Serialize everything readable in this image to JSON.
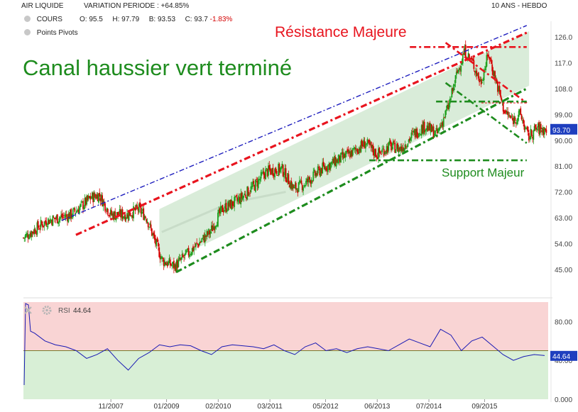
{
  "header": {
    "symbol": "AIR LIQUIDE",
    "variation_label": "VARIATION PERIODE :",
    "variation_value": "+64.85%",
    "period": "10 ANS - HEBDO",
    "series_label": "COURS",
    "open_label": "O:",
    "open_value": "95.5",
    "high_label": "H:",
    "high_value": "97.79",
    "low_label": "B:",
    "low_value": "93.53",
    "close_label": "C:",
    "close_value": "93.7",
    "change_value": "-1.83%",
    "pivots_label": "Points Pivots"
  },
  "annotations": {
    "main_title": "Canal haussier vert terminé",
    "resistance": "Résistance Majeure",
    "support": "Support Majeur"
  },
  "colors": {
    "up": "#1ea01e",
    "down": "#d40000",
    "channel_green": "#1e8c1e",
    "resistance_red": "#e8141e",
    "channel_blue": "#1e1ebe",
    "rsi_line": "#1a1ab4",
    "rsi_upper_bg": "#f9d4d4",
    "rsi_lower_bg": "#d8efd6",
    "price_badge": "#1f3fbf"
  },
  "chart_data": [
    {
      "type": "candlestick",
      "y_ticks": [
        "45.00",
        "54.00",
        "63.00",
        "72.00",
        "81.00",
        "90.00",
        "99.00",
        "108.0",
        "117.0",
        "126.0"
      ],
      "ylim": [
        40,
        129
      ],
      "x_ticks": [
        "11/2007",
        "01/2009",
        "02/2010",
        "03/2011",
        "05/2012",
        "06/2013",
        "07/2014",
        "09/2015"
      ],
      "last_price": "93.70",
      "resistance_level": 122.5,
      "support_level": 83,
      "trend_anchors": [
        {
          "date": "2006-01",
          "close": 56
        },
        {
          "date": "2006-07",
          "close": 62
        },
        {
          "date": "2007-01",
          "close": 64
        },
        {
          "date": "2007-06",
          "close": 70
        },
        {
          "date": "2007-08",
          "close": 71
        },
        {
          "date": "2007-11",
          "close": 64
        },
        {
          "date": "2008-03",
          "close": 64
        },
        {
          "date": "2008-06",
          "close": 66
        },
        {
          "date": "2008-08",
          "close": 63
        },
        {
          "date": "2008-10",
          "close": 55
        },
        {
          "date": "2008-12",
          "close": 48
        },
        {
          "date": "2009-03",
          "close": 46
        },
        {
          "date": "2009-06",
          "close": 50
        },
        {
          "date": "2009-09",
          "close": 54
        },
        {
          "date": "2009-12",
          "close": 58
        },
        {
          "date": "2010-03",
          "close": 66
        },
        {
          "date": "2010-07",
          "close": 69
        },
        {
          "date": "2010-11",
          "close": 74
        },
        {
          "date": "2011-02",
          "close": 79
        },
        {
          "date": "2011-06",
          "close": 80
        },
        {
          "date": "2011-09",
          "close": 73
        },
        {
          "date": "2011-12",
          "close": 75
        },
        {
          "date": "2012-04",
          "close": 80
        },
        {
          "date": "2012-08",
          "close": 83
        },
        {
          "date": "2012-12",
          "close": 86
        },
        {
          "date": "2013-03",
          "close": 89
        },
        {
          "date": "2013-06",
          "close": 85
        },
        {
          "date": "2013-09",
          "close": 88
        },
        {
          "date": "2013-12",
          "close": 87
        },
        {
          "date": "2014-03",
          "close": 92
        },
        {
          "date": "2014-06",
          "close": 95
        },
        {
          "date": "2014-09",
          "close": 92
        },
        {
          "date": "2014-12",
          "close": 102
        },
        {
          "date": "2015-02",
          "close": 113
        },
        {
          "date": "2015-04",
          "close": 121
        },
        {
          "date": "2015-06",
          "close": 117
        },
        {
          "date": "2015-08",
          "close": 110
        },
        {
          "date": "2015-10",
          "close": 120
        },
        {
          "date": "2015-12",
          "close": 110
        },
        {
          "date": "2016-02",
          "close": 100
        },
        {
          "date": "2016-04",
          "close": 97
        },
        {
          "date": "2016-06",
          "close": 99
        },
        {
          "date": "2016-08",
          "close": 91
        },
        {
          "date": "2016-10",
          "close": 94
        },
        {
          "date": "2016-12",
          "close": 93.7
        }
      ]
    },
    {
      "type": "line",
      "name": "RSI",
      "value_label": "44.64",
      "y_ticks": [
        "0.000",
        "40.00",
        "80.00"
      ],
      "ylim": [
        0,
        100
      ],
      "midline": 50,
      "current": 44.64,
      "values": [
        70,
        68,
        60,
        56,
        54,
        50,
        42,
        46,
        52,
        40,
        30,
        42,
        48,
        56,
        54,
        56,
        55,
        50,
        46,
        54,
        56,
        55,
        54,
        52,
        56,
        50,
        46,
        54,
        58,
        50,
        52,
        48,
        52,
        54,
        52,
        50,
        56,
        62,
        58,
        54,
        72,
        66,
        50,
        60,
        64,
        55,
        46,
        40,
        44,
        46,
        45
      ]
    }
  ]
}
